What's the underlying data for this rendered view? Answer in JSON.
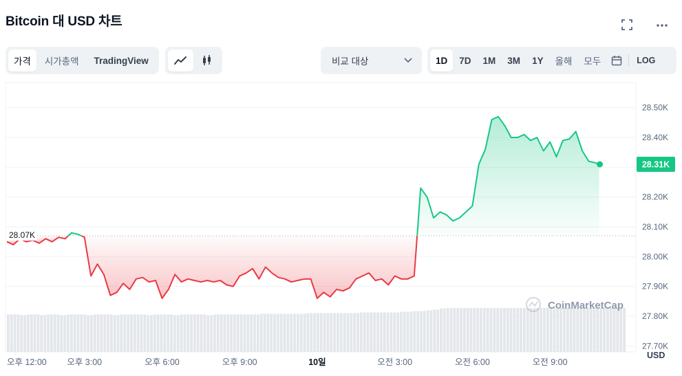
{
  "header": {
    "title": "Bitcoin 대 USD 차트"
  },
  "icons": {
    "fullscreen": "fullscreen-icon",
    "more": "more-icon"
  },
  "view_tabs": [
    {
      "label": "가격",
      "active": true
    },
    {
      "label": "시가총액",
      "active": false
    },
    {
      "label": "TradingView",
      "active": false
    }
  ],
  "chart_types": [
    {
      "icon": "line-chart-icon",
      "active": true
    },
    {
      "icon": "candlestick-icon",
      "active": false
    }
  ],
  "compare": {
    "label": "비교 대상"
  },
  "ranges": [
    {
      "label": "1D",
      "active": true
    },
    {
      "label": "7D",
      "active": false
    },
    {
      "label": "1M",
      "active": false
    },
    {
      "label": "3M",
      "active": false
    },
    {
      "label": "1Y",
      "active": false
    },
    {
      "label": "올해",
      "active": false
    },
    {
      "label": "모두",
      "active": false
    }
  ],
  "log_label": "LOG",
  "watermark": "CoinMarketCap",
  "colors": {
    "up": "#16c784",
    "down": "#ea3943",
    "current_badge": "#16c784",
    "volume": "#e3e6ea"
  },
  "chart_data": {
    "type": "area",
    "ylabel": "USD",
    "ylim": [
      27680,
      28580
    ],
    "yticks": [
      27700,
      27800,
      27900,
      28000,
      28100,
      28200,
      28300,
      28400,
      28500
    ],
    "ytick_labels": [
      "27.70K",
      "27.80K",
      "27.90K",
      "28.00K",
      "28.10K",
      "28.20K",
      "28.30K",
      "28.40K",
      "28.50K"
    ],
    "xticks": [
      {
        "label": "오후 12:00",
        "t": 0
      },
      {
        "label": "오후 3:00",
        "t": 3
      },
      {
        "label": "오후 6:00",
        "t": 6
      },
      {
        "label": "오후 9:00",
        "t": 9
      },
      {
        "label": "10일",
        "t": 12,
        "bold": true
      },
      {
        "label": "오전 3:00",
        "t": 15
      },
      {
        "label": "오전 6:00",
        "t": 18
      },
      {
        "label": "오전 9:00",
        "t": 21
      }
    ],
    "x_hours_from_noon": [
      0,
      0.25,
      0.5,
      0.75,
      1.0,
      1.25,
      1.5,
      1.75,
      2.0,
      2.25,
      2.5,
      2.75,
      3.0,
      3.25,
      3.5,
      3.75,
      4.0,
      4.25,
      4.5,
      4.75,
      5.0,
      5.25,
      5.5,
      5.75,
      6.0,
      6.25,
      6.5,
      6.75,
      7.0,
      7.25,
      7.5,
      7.75,
      8.0,
      8.25,
      8.5,
      8.75,
      9.0,
      9.25,
      9.5,
      9.75,
      10.0,
      10.25,
      10.5,
      10.75,
      11.0,
      11.25,
      11.5,
      11.75,
      12.0,
      12.25,
      12.5,
      12.75,
      13.0,
      13.25,
      13.5,
      13.75,
      14.0,
      14.25,
      14.5,
      14.75,
      15.0,
      15.25,
      15.5,
      15.75,
      16.0,
      16.25,
      16.5,
      16.75,
      17.0,
      17.25,
      17.5,
      17.75,
      18.0,
      18.25,
      18.5,
      18.75,
      19.0,
      19.25,
      19.5,
      19.75,
      20.0,
      20.25,
      20.5,
      20.75,
      21.0,
      21.25,
      21.5,
      21.75,
      22.0,
      22.25,
      22.5,
      22.75,
      22.9
    ],
    "price": [
      28050,
      28040,
      28060,
      28050,
      28055,
      28045,
      28060,
      28050,
      28065,
      28060,
      28080,
      28075,
      28065,
      27935,
      27975,
      27940,
      27870,
      27880,
      27910,
      27890,
      27925,
      27930,
      27915,
      27920,
      27860,
      27890,
      27940,
      27915,
      27925,
      27920,
      27915,
      27920,
      27915,
      27920,
      27905,
      27900,
      27935,
      27945,
      27960,
      27925,
      27965,
      27945,
      27930,
      27925,
      27915,
      27920,
      27925,
      27925,
      27860,
      27880,
      27865,
      27890,
      27885,
      27895,
      27925,
      27935,
      27945,
      27920,
      27925,
      27905,
      27935,
      27925,
      27925,
      27935,
      28230,
      28200,
      28130,
      28150,
      28140,
      28120,
      28130,
      28150,
      28170,
      28310,
      28360,
      28460,
      28470,
      28440,
      28400,
      28400,
      28410,
      28390,
      28400,
      28355,
      28385,
      28335,
      28390,
      28395,
      28420,
      28355,
      28320,
      28315,
      28310
    ],
    "baseline": 28070,
    "baseline_label": "28.07K",
    "current_price_label": "28.31K",
    "volume_relative": [
      0.55,
      0.55,
      0.54,
      0.55,
      0.55,
      0.54,
      0.55,
      0.55,
      0.54,
      0.55,
      0.55,
      0.55,
      0.54,
      0.55,
      0.55,
      0.55,
      0.54,
      0.55,
      0.55,
      0.55,
      0.55,
      0.54,
      0.55,
      0.55,
      0.55,
      0.54,
      0.55,
      0.55,
      0.55,
      0.55,
      0.54,
      0.55,
      0.55,
      0.55,
      0.55,
      0.55,
      0.55,
      0.55,
      0.56,
      0.56,
      0.56,
      0.56,
      0.56,
      0.56,
      0.56,
      0.57,
      0.57,
      0.57,
      0.57,
      0.57,
      0.57,
      0.57,
      0.57,
      0.58,
      0.58,
      0.58,
      0.58,
      0.58,
      0.58,
      0.59,
      0.59,
      0.6,
      0.6,
      0.61,
      0.62,
      0.64,
      0.65,
      0.66,
      0.67,
      0.67,
      0.67,
      0.67,
      0.67,
      0.67,
      0.67,
      0.67,
      0.67,
      0.68,
      0.68,
      0.68,
      0.69,
      0.69,
      0.69,
      0.7,
      0.7,
      0.7,
      0.7,
      0.71,
      0.71,
      0.71,
      0.71,
      0.72,
      0.72
    ]
  }
}
